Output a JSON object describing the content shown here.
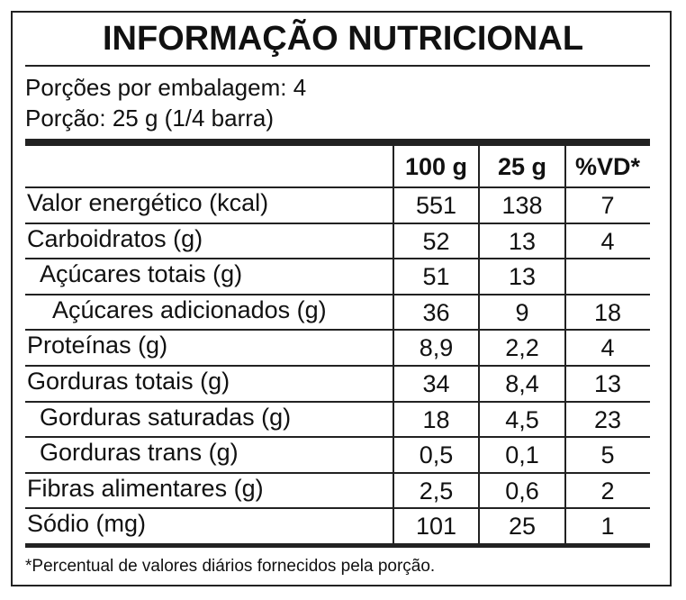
{
  "title": "INFORMAÇÃO NUTRICIONAL",
  "servings": [
    "Porções por embalagem: 4",
    "Porção: 25 g (1/4 barra)"
  ],
  "table": {
    "header": [
      "100 g",
      "25 g",
      "%VD*"
    ],
    "rows": [
      [
        "Valor energético (kcal)",
        "551",
        "138",
        "7"
      ],
      [
        "Carboidratos (g)",
        "52",
        "13",
        "4"
      ],
      [
        "Açúcares totais (g)",
        "51",
        "13",
        null
      ],
      [
        "Açúcares adicionados (g)",
        "36",
        "9",
        "18"
      ],
      [
        "Proteínas (g)",
        "8,9",
        "2,2",
        "4"
      ],
      [
        "Gorduras totais (g)",
        "34",
        "8,4",
        "13"
      ],
      [
        "Gorduras saturadas (g)",
        "18",
        "4,5",
        "23"
      ],
      [
        "Gorduras trans (g)",
        "0,5",
        "0,1",
        "5"
      ],
      [
        "Fibras alimentares (g)",
        "2,5",
        "0,6",
        "2"
      ],
      [
        "Sódio (mg)",
        "101",
        "25",
        "1"
      ]
    ]
  },
  "footnote": "*Percentual de valores diários fornecidos pela porção."
}
